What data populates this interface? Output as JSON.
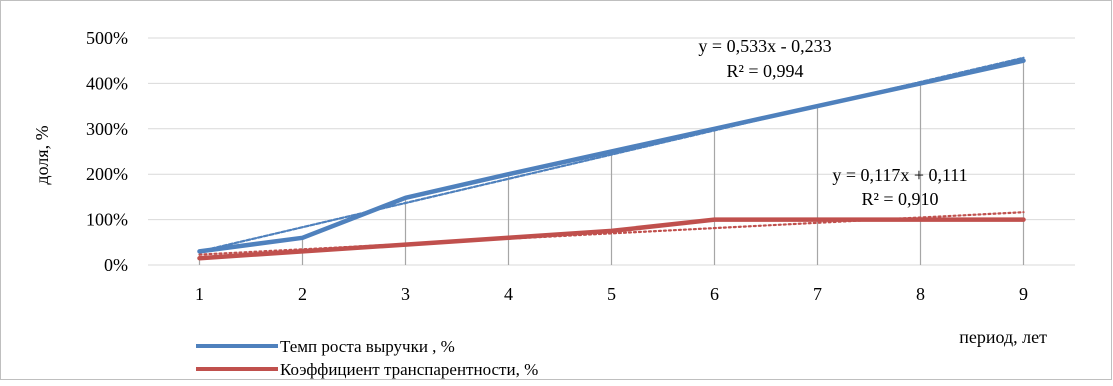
{
  "chart_data": {
    "type": "line",
    "xlabel": "период, лет",
    "ylabel": "доля, %",
    "categories": [
      1,
      2,
      3,
      4,
      5,
      6,
      7,
      8,
      9
    ],
    "ylim": [
      0,
      500
    ],
    "yticks": [
      0,
      100,
      200,
      300,
      400,
      500
    ],
    "ytick_labels": [
      "0%",
      "100%",
      "200%",
      "300%",
      "400%",
      "500%"
    ],
    "grid": true,
    "drop_lines": true,
    "legend_position": "bottom-left",
    "series": [
      {
        "name": "Темп роста выручки , %",
        "color": "#4F81BD",
        "values": [
          30,
          60,
          148,
          200,
          250,
          300,
          350,
          400,
          450
        ],
        "trendline": {
          "type": "linear",
          "slope": 0.533,
          "intercept": -0.233,
          "equation": "y = 0,533x - 0,233",
          "r2": "R² = 0,994"
        }
      },
      {
        "name": "Коэффициент транспарентности, %",
        "color": "#C0504D",
        "values": [
          15,
          30,
          45,
          60,
          75,
          100,
          100,
          100,
          100
        ],
        "trendline": {
          "type": "linear",
          "slope": 0.117,
          "intercept": 0.111,
          "equation": "y = 0,117x + 0,111",
          "r2": "R² = 0,910"
        }
      }
    ]
  }
}
